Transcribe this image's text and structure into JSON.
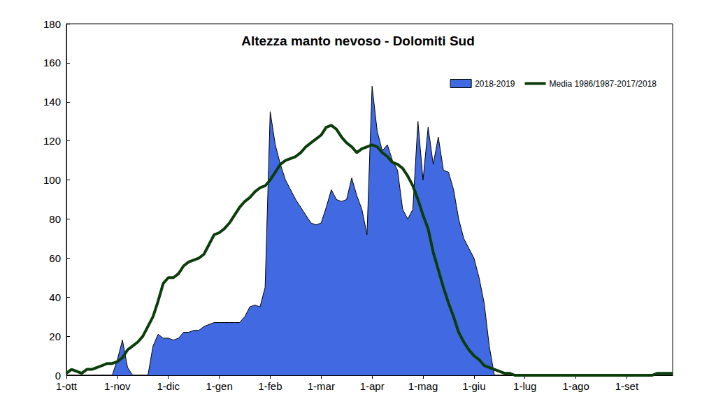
{
  "chart_data": {
    "type": "line",
    "title": "Altezza manto nevoso - Dolomiti Sud",
    "categories": [
      "1-ott",
      null,
      null,
      null,
      null,
      null,
      null,
      null,
      null,
      null,
      "1-nov",
      null,
      null,
      null,
      null,
      null,
      null,
      null,
      null,
      null,
      "1-dic",
      null,
      null,
      null,
      null,
      null,
      null,
      null,
      null,
      null,
      "1-gen",
      null,
      null,
      null,
      null,
      null,
      null,
      null,
      null,
      null,
      "1-feb",
      null,
      null,
      null,
      null,
      null,
      null,
      null,
      null,
      null,
      "1-mar",
      null,
      null,
      null,
      null,
      null,
      null,
      null,
      null,
      null,
      "1-apr",
      null,
      null,
      null,
      null,
      null,
      null,
      null,
      null,
      null,
      "1-mag",
      null,
      null,
      null,
      null,
      null,
      null,
      null,
      null,
      null,
      "1-giu",
      null,
      null,
      null,
      null,
      null,
      null,
      null,
      null,
      null,
      "1-lug",
      null,
      null,
      null,
      null,
      null,
      null,
      null,
      null,
      null,
      "1-ago",
      null,
      null,
      null,
      null,
      null,
      null,
      null,
      null,
      null,
      "1-set",
      null,
      null,
      null,
      null,
      null,
      null,
      null,
      null,
      null
    ],
    "series": [
      {
        "name": "2018-2019",
        "type": "area",
        "color": "#4169e1",
        "values": [
          0,
          0,
          0,
          0,
          0,
          0,
          0,
          0,
          0,
          0,
          8,
          18,
          4,
          0,
          0,
          0,
          0,
          15,
          21,
          19,
          19,
          18,
          19,
          22,
          22,
          23,
          23,
          25,
          26,
          27,
          27,
          27,
          27,
          27,
          27,
          30,
          35,
          36,
          35,
          45,
          135,
          118,
          108,
          100,
          95,
          90,
          86,
          82,
          78,
          77,
          78,
          86,
          95,
          90,
          89,
          90,
          101,
          92,
          85,
          72,
          148,
          125,
          115,
          118,
          110,
          105,
          85,
          80,
          85,
          130,
          100,
          127,
          108,
          122,
          105,
          104,
          95,
          80,
          70,
          65,
          60,
          50,
          37,
          15,
          0,
          0,
          0,
          0,
          0,
          0,
          0,
          0,
          0,
          0,
          0,
          0,
          0,
          0,
          0,
          0,
          0,
          0,
          0,
          0,
          0,
          0,
          0,
          0,
          0,
          0,
          0,
          0,
          0,
          0,
          0,
          0,
          0,
          0,
          0,
          0
        ]
      },
      {
        "name": "Media 1986/1987-2017/2018",
        "type": "line",
        "color": "#0b3d0b",
        "values": [
          1,
          3,
          2,
          1,
          3,
          3,
          4,
          5,
          6,
          6,
          7,
          9,
          13,
          15,
          17,
          20,
          25,
          30,
          38,
          47,
          50,
          50,
          52,
          56,
          58,
          59,
          60,
          62,
          67,
          72,
          73,
          75,
          78,
          82,
          86,
          89,
          91,
          94,
          96,
          97,
          100,
          104,
          108,
          110,
          111,
          112,
          114,
          117,
          119,
          121,
          123,
          127,
          128,
          126,
          122,
          119,
          117,
          114,
          116,
          117,
          118,
          117,
          114,
          112,
          109,
          108,
          106,
          102,
          97,
          90,
          82,
          75,
          63,
          54,
          45,
          37,
          30,
          22,
          17,
          13,
          10,
          8,
          5,
          4,
          3,
          2,
          1,
          1,
          0,
          0,
          0,
          0,
          0,
          0,
          0,
          0,
          0,
          0,
          0,
          0,
          0,
          0,
          0,
          0,
          0,
          0,
          0,
          0,
          0,
          0,
          0,
          0,
          0,
          0,
          0,
          0,
          1,
          1,
          1,
          1
        ]
      }
    ],
    "ylim": [
      0,
      180
    ],
    "yticks": [
      0,
      20,
      40,
      60,
      80,
      100,
      120,
      140,
      160,
      180
    ],
    "grid": false,
    "legend": "upper right"
  }
}
